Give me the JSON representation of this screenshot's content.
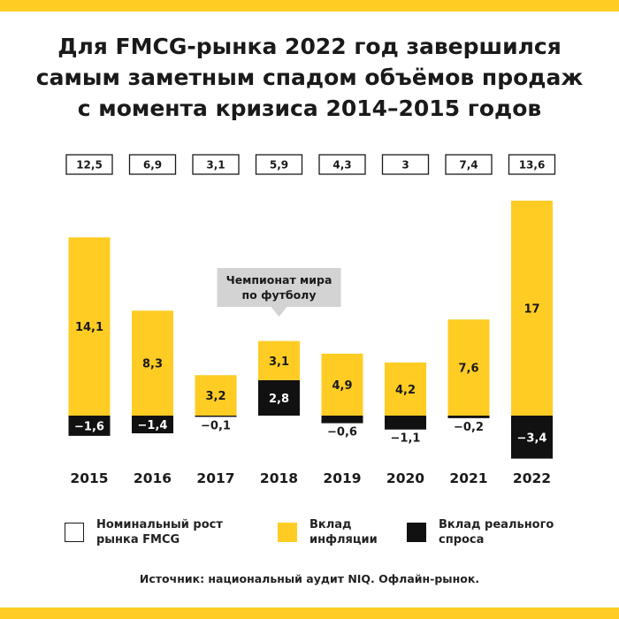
{
  "title_lines": [
    "Для FMCG-рынка 2022 год завершился",
    "самым заметным спадом объёмов продаж",
    "с момента кризиса 2014–2015 годов"
  ],
  "annotation": {
    "lines": [
      "Чемпионат мира",
      "по футболу"
    ],
    "year": "2018"
  },
  "legend": {
    "nominal": {
      "lines": [
        "Номинальный рост",
        "рынка FMCG"
      ]
    },
    "inflation": {
      "lines": [
        "Вклад",
        "инфляции"
      ]
    },
    "real": {
      "lines": [
        "Вклад реального",
        "спроса"
      ]
    }
  },
  "source": "Источник: национальный аудит NIQ. Офлайн-рынок.",
  "colors": {
    "inflation": "#ffcc24",
    "real": "#111111",
    "nominal_box": "#ffffff",
    "annotation": "#d3d3d3",
    "frame": "#ffcc24"
  },
  "chart_data": {
    "type": "bar",
    "stacked": true,
    "categories": [
      "2015",
      "2016",
      "2017",
      "2018",
      "2019",
      "2020",
      "2021",
      "2022"
    ],
    "nominal_growth": [
      "12,5",
      "6,9",
      "3,1",
      "5,9",
      "4,3",
      "3",
      "7,4",
      "13,6"
    ],
    "series": [
      {
        "name": "Вклад инфляции",
        "values": [
          14.1,
          8.3,
          3.2,
          3.1,
          4.9,
          4.2,
          7.6,
          17
        ],
        "labels": [
          "14,1",
          "8,3",
          "3,2",
          "3,1",
          "4,9",
          "4,2",
          "7,6",
          "17"
        ]
      },
      {
        "name": "Вклад реального спроса",
        "values": [
          -1.6,
          -1.4,
          -0.1,
          2.8,
          -0.6,
          -1.1,
          -0.2,
          -3.4
        ],
        "labels": [
          "−1,6",
          "−1,4",
          "−0,1",
          "2,8",
          "−0,6",
          "−1,1",
          "−0,2",
          "−3,4"
        ]
      }
    ]
  }
}
